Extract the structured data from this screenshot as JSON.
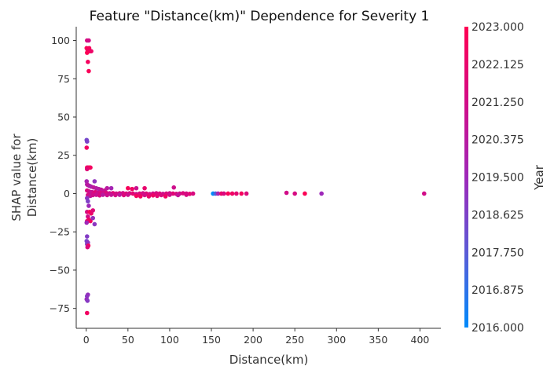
{
  "chart_data": {
    "type": "scatter",
    "title": "Feature \"Distance(km)\" Dependence for Severity 1",
    "xlabel": "Distance(km)",
    "ylabel_lines": [
      "SHAP value for",
      "Distance(km)"
    ],
    "xlim": [
      -12,
      425
    ],
    "ylim": [
      -88,
      109
    ],
    "x_ticks": [
      0,
      50,
      100,
      150,
      200,
      250,
      300,
      350,
      400
    ],
    "y_ticks": [
      -75,
      -50,
      -25,
      0,
      25,
      50,
      75,
      100
    ],
    "x_tick_labels": [
      "0",
      "50",
      "100",
      "150",
      "200",
      "250",
      "300",
      "350",
      "400"
    ],
    "y_tick_labels": [
      "−75",
      "−50",
      "−25",
      "0",
      "25",
      "50",
      "75",
      "100"
    ],
    "grid": false,
    "colorbar": {
      "label": "Year",
      "min": 2016.0,
      "max": 2023.0,
      "tick_values": [
        2016.0,
        2016.875,
        2017.75,
        2018.625,
        2019.5,
        2020.375,
        2021.25,
        2022.125,
        2023.0
      ],
      "tick_labels": [
        "2016.000",
        "2016.875",
        "2017.750",
        "2018.625",
        "2019.500",
        "2020.375",
        "2021.250",
        "2022.125",
        "2023.000"
      ],
      "colors": [
        "#008afb",
        "#5b5bd6",
        "#9e28b9",
        "#d20c87",
        "#ff0052"
      ]
    },
    "points": [
      [
        1,
        100,
        2021.5
      ],
      [
        3,
        100,
        2021.2
      ],
      [
        0.5,
        95,
        2022.8
      ],
      [
        1.5,
        94,
        2022.6
      ],
      [
        2.5,
        93,
        2022.5
      ],
      [
        3.5,
        95,
        2022.7
      ],
      [
        4.5,
        93,
        2022.4
      ],
      [
        6,
        93,
        2022.3
      ],
      [
        1,
        92,
        2022.9
      ],
      [
        2,
        86,
        2022.6
      ],
      [
        3,
        80,
        2022.8
      ],
      [
        0.5,
        35,
        2018.4
      ],
      [
        1,
        34,
        2018.6
      ],
      [
        0.5,
        30,
        2022.5
      ],
      [
        1,
        17,
        2022.7
      ],
      [
        2,
        17,
        2022.2
      ],
      [
        3.5,
        17,
        2022.4
      ],
      [
        5,
        17,
        2022.6
      ],
      [
        1,
        16,
        2021.8
      ],
      [
        0.5,
        8,
        2019.8
      ],
      [
        10,
        8,
        2019.1
      ],
      [
        1,
        6,
        2020.0
      ],
      [
        2,
        5.5,
        2020.5
      ],
      [
        4,
        5,
        2020.1
      ],
      [
        6,
        4.5,
        2020.0
      ],
      [
        9,
        4,
        2020.6
      ],
      [
        12,
        3.5,
        2020.3
      ],
      [
        15,
        3,
        2020.2
      ],
      [
        18,
        2.5,
        2020.7
      ],
      [
        22,
        2,
        2020.9
      ],
      [
        25,
        3.5,
        2020.4
      ],
      [
        30,
        3.5,
        2019.7
      ],
      [
        1,
        2,
        2021.6
      ],
      [
        3,
        1.5,
        2021.3
      ],
      [
        5,
        1,
        2021.0
      ],
      [
        7,
        1,
        2020.8
      ],
      [
        9,
        0.5,
        2021.4
      ],
      [
        11,
        1,
        2021.7
      ],
      [
        14,
        0.5,
        2021.1
      ],
      [
        17,
        0.5,
        2021.5
      ],
      [
        20,
        0.2,
        2021.2
      ],
      [
        24,
        0.5,
        2021.6
      ],
      [
        28,
        0.2,
        2021.0
      ],
      [
        32,
        0.3,
        2021.8
      ],
      [
        36,
        0,
        2021.3
      ],
      [
        40,
        0.2,
        2021.5
      ],
      [
        44,
        0.3,
        2021.2
      ],
      [
        48,
        0,
        2021.7
      ],
      [
        50,
        3.5,
        2022.7
      ],
      [
        55,
        3,
        2022.4
      ],
      [
        60,
        3.5,
        2021.0
      ],
      [
        52,
        0.2,
        2021.4
      ],
      [
        56,
        0,
        2021.9
      ],
      [
        60,
        -0.3,
        2021.1
      ],
      [
        64,
        0,
        2021.6
      ],
      [
        68,
        0.2,
        2021.3
      ],
      [
        72,
        0,
        2021.8
      ],
      [
        76,
        -0.3,
        2021.4
      ],
      [
        80,
        0,
        2021.2
      ],
      [
        84,
        0.2,
        2021.5
      ],
      [
        88,
        0,
        2021.7
      ],
      [
        92,
        -0.2,
        2021.0
      ],
      [
        96,
        0,
        2021.6
      ],
      [
        100,
        0.2,
        2021.3
      ],
      [
        104,
        0,
        2021.8
      ],
      [
        108,
        -0.2,
        2021.5
      ],
      [
        112,
        0,
        2021.2
      ],
      [
        116,
        0.2,
        2021.6
      ],
      [
        120,
        0,
        2021.4
      ],
      [
        124,
        -0.2,
        2021.9
      ],
      [
        128,
        0,
        2021.5
      ],
      [
        105,
        4,
        2021.1
      ],
      [
        70,
        3.5,
        2022.1
      ],
      [
        2,
        -1,
        2021.4
      ],
      [
        5,
        -1.5,
        2020.6
      ],
      [
        8,
        -1,
        2021.2
      ],
      [
        12,
        -0.8,
        2020.9
      ],
      [
        16,
        -1.2,
        2021.5
      ],
      [
        20,
        -0.8,
        2020.4
      ],
      [
        25,
        -1,
        2021.1
      ],
      [
        30,
        -0.8,
        2020.8
      ],
      [
        35,
        -1,
        2021.3
      ],
      [
        40,
        -0.8,
        2020.5
      ],
      [
        45,
        -1,
        2021.6
      ],
      [
        50,
        -0.8,
        2021.0
      ],
      [
        60,
        -1.5,
        2022.6
      ],
      [
        70,
        -1,
        2021.2
      ],
      [
        80,
        -1.2,
        2022.3
      ],
      [
        90,
        -1,
        2021.5
      ],
      [
        100,
        -0.8,
        2021.1
      ],
      [
        110,
        -1,
        2020.7
      ],
      [
        120,
        -0.8,
        2021.4
      ],
      [
        65,
        -1.8,
        2022.5
      ],
      [
        75,
        -1.8,
        2022.2
      ],
      [
        85,
        -1.5,
        2021.9
      ],
      [
        95,
        -1.8,
        2022.4
      ],
      [
        1,
        -3,
        2019.0
      ],
      [
        2,
        -5,
        2018.7
      ],
      [
        3,
        -8,
        2019.5
      ],
      [
        1,
        -12,
        2021.4
      ],
      [
        4,
        -12,
        2022.8
      ],
      [
        6,
        -13,
        2022.3
      ],
      [
        8,
        -11,
        2021.7
      ],
      [
        2,
        -15,
        2021.2
      ],
      [
        5,
        -18,
        2022.6
      ],
      [
        1,
        -18,
        2021.8
      ],
      [
        3,
        -17,
        2022.4
      ],
      [
        0.5,
        -19,
        2019.6
      ],
      [
        8,
        -16,
        2019.3
      ],
      [
        10,
        -20,
        2019.0
      ],
      [
        1,
        -28,
        2018.8
      ],
      [
        0.5,
        -31,
        2018.5
      ],
      [
        2,
        -32,
        2019.1
      ],
      [
        1,
        -33,
        2018.9
      ],
      [
        2.5,
        -34,
        2022.7
      ],
      [
        1.5,
        -35,
        2021.6
      ],
      [
        1,
        -67,
        2018.7
      ],
      [
        2,
        -66,
        2019.2
      ],
      [
        0.5,
        -69,
        2019.4
      ],
      [
        1.5,
        -70,
        2018.9
      ],
      [
        1,
        -78,
        2022.5
      ],
      [
        152,
        0,
        2016.0
      ],
      [
        155,
        0,
        2017.5
      ],
      [
        158,
        0,
        2019.8
      ],
      [
        162,
        0,
        2022.2
      ],
      [
        165,
        0,
        2021.5
      ],
      [
        170,
        0,
        2022.8
      ],
      [
        175,
        0,
        2022.4
      ],
      [
        180,
        0,
        2021.9
      ],
      [
        186,
        0,
        2022.6
      ],
      [
        192,
        0,
        2021.6
      ],
      [
        240,
        0.5,
        2021.2
      ],
      [
        250,
        0,
        2021.4
      ],
      [
        262,
        0,
        2022.9
      ],
      [
        282,
        0,
        2019.5
      ],
      [
        405,
        0,
        2021.2
      ]
    ]
  }
}
